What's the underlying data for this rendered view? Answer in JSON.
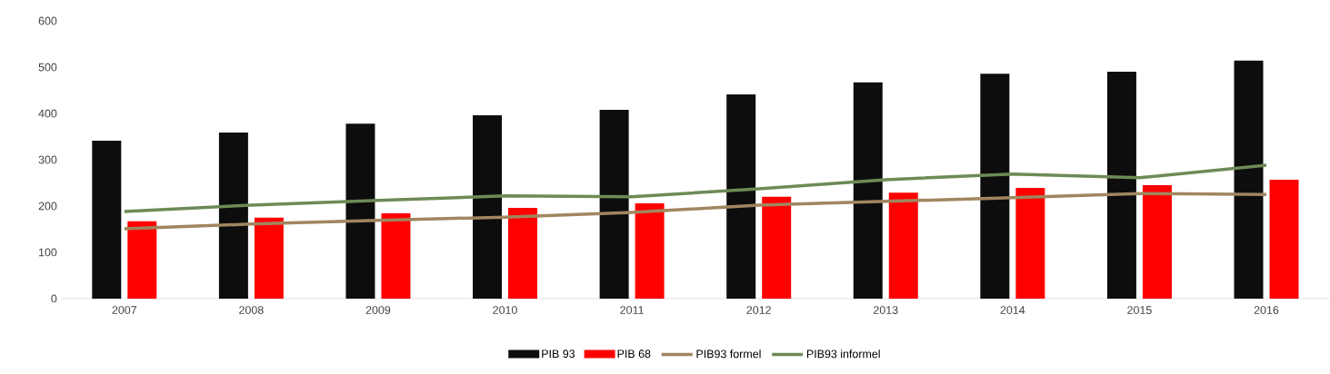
{
  "chart_data": {
    "type": "bar",
    "categories": [
      "2007",
      "2008",
      "2009",
      "2010",
      "2011",
      "2012",
      "2013",
      "2014",
      "2015",
      "2016"
    ],
    "series": [
      {
        "name": "PIB 93",
        "color": "#0d0d0d",
        "values": [
          341,
          359,
          378,
          396,
          408,
          441,
          467,
          486,
          490,
          514
        ]
      },
      {
        "name": "PIB 68",
        "color": "#ff0000",
        "values": [
          167,
          175,
          184,
          196,
          206,
          220,
          229,
          239,
          245,
          257
        ]
      },
      {
        "name": "PIB93 formel",
        "type": "line",
        "color": "#a08660",
        "values": [
          151,
          161,
          169,
          176,
          186,
          202,
          210,
          218,
          227,
          225
        ]
      },
      {
        "name": "PIB93 informel",
        "type": "line",
        "color": "#6e8a56",
        "values": [
          188,
          202,
          212,
          222,
          220,
          237,
          257,
          269,
          261,
          288
        ]
      }
    ],
    "ylim": [
      0,
      600
    ],
    "yticks": [
      0,
      100,
      200,
      300,
      400,
      500,
      600
    ],
    "grid": false,
    "legend": "bottom",
    "marker": "none",
    "line_style": "solid"
  }
}
